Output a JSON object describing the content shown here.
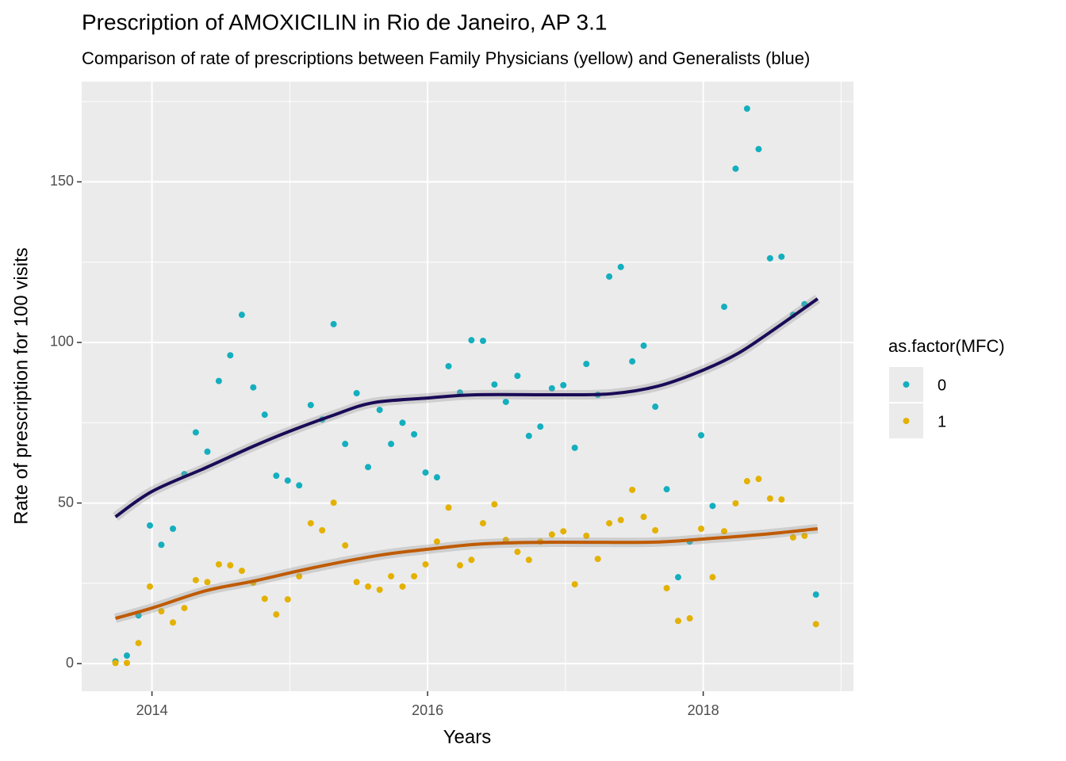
{
  "chart_data": {
    "type": "scatter",
    "title": "Prescription of AMOXICILIN in Rio de Janeiro, AP 3.1",
    "subtitle": "Comparison of rate of prescriptions between Family Physicians (yellow) and Generalists (blue)",
    "x_label": "Years",
    "y_label": "Rate of prescription for 100 visits",
    "legend_title": "as.factor(MFC)",
    "xlim": [
      2013.49,
      2019.09
    ],
    "ylim": [
      -8.6,
      181.2
    ],
    "xticks": [
      2014,
      2016,
      2018
    ],
    "yticks": [
      0,
      50,
      100,
      150
    ],
    "grid": true,
    "x": [
      2013.735,
      2013.818,
      2013.902,
      2013.985,
      2014.068,
      2014.152,
      2014.235,
      2014.318,
      2014.402,
      2014.485,
      2014.568,
      2014.652,
      2014.735,
      2014.818,
      2014.902,
      2014.985,
      2015.068,
      2015.152,
      2015.235,
      2015.318,
      2015.402,
      2015.485,
      2015.568,
      2015.652,
      2015.735,
      2015.818,
      2015.902,
      2015.985,
      2016.068,
      2016.152,
      2016.235,
      2016.318,
      2016.402,
      2016.485,
      2016.568,
      2016.652,
      2016.735,
      2016.818,
      2016.902,
      2016.985,
      2017.068,
      2017.152,
      2017.235,
      2017.318,
      2017.402,
      2017.485,
      2017.568,
      2017.652,
      2017.735,
      2017.818,
      2017.902,
      2017.985,
      2018.068,
      2018.152,
      2018.235,
      2018.318,
      2018.402,
      2018.485,
      2018.568,
      2018.652,
      2018.735,
      2018.818
    ],
    "series": [
      {
        "name": "0",
        "color": "#14AFBE",
        "values": [
          0.7,
          2.5,
          15,
          43,
          37,
          42,
          59,
          72,
          66,
          88,
          96,
          108.6,
          86,
          77.5,
          58.5,
          57,
          55.5,
          80.5,
          76,
          105.7,
          68.4,
          84.2,
          61.2,
          79,
          68.4,
          75,
          71.4,
          59.5,
          58,
          92.6,
          84.4,
          100.7,
          100.5,
          86.9,
          81.5,
          89.6,
          70.9,
          73.8,
          85.7,
          86.7,
          67.2,
          93.3,
          83.7,
          120.5,
          123.5,
          94.1,
          99,
          80,
          54.3,
          26.9,
          38,
          71.1,
          49.1,
          111.1,
          154.1,
          172.8,
          160.2,
          126.2,
          126.7,
          108.6,
          111.9,
          21.5
        ]
      },
      {
        "name": "1",
        "color": "#E3B100",
        "values": [
          0.2,
          0.2,
          6.4,
          24,
          16.3,
          12.8,
          17.3,
          26,
          25.4,
          30.9,
          30.6,
          28.9,
          25.2,
          20.2,
          15.3,
          20,
          27.2,
          43.7,
          41.5,
          50.1,
          36.8,
          25.4,
          24,
          23,
          27.2,
          24,
          27.2,
          30.9,
          38,
          48.6,
          30.6,
          32.3,
          43.7,
          49.6,
          38.5,
          34.8,
          32.3,
          38,
          40.2,
          41.2,
          24.7,
          39.8,
          32.6,
          43.7,
          44.7,
          54.1,
          45.7,
          41.5,
          23.5,
          13.3,
          14.1,
          42,
          26.9,
          41.2,
          49.9,
          56.8,
          57.5,
          51.4,
          51.1,
          39.3,
          39.8,
          12.3
        ]
      }
    ],
    "smooth": [
      {
        "color": "#1A0B57",
        "x": [
          2013.735,
          2014,
          2014.391,
          2014.737,
          2014.996,
          2015.313,
          2015.6,
          2016,
          2016.351,
          2016.925,
          2017.328,
          2017.673,
          2018,
          2018.249,
          2018.479,
          2018.83
        ],
        "values": [
          45.7,
          53.6,
          61,
          67.7,
          72.3,
          77.3,
          81.2,
          82.7,
          83.7,
          83.7,
          84,
          86.4,
          91.4,
          96.5,
          103,
          113.6
        ]
      },
      {
        "color": "#BF5A00",
        "x": [
          2013.735,
          2014,
          2014.391,
          2014.737,
          2015.197,
          2015.658,
          2016,
          2016.406,
          2016.925,
          2017.615,
          2018,
          2018.421,
          2018.83
        ],
        "values": [
          14.1,
          17.3,
          22.7,
          25.7,
          30.1,
          33.8,
          35.6,
          37.3,
          37.8,
          37.8,
          38.8,
          40.2,
          42
        ]
      }
    ]
  }
}
